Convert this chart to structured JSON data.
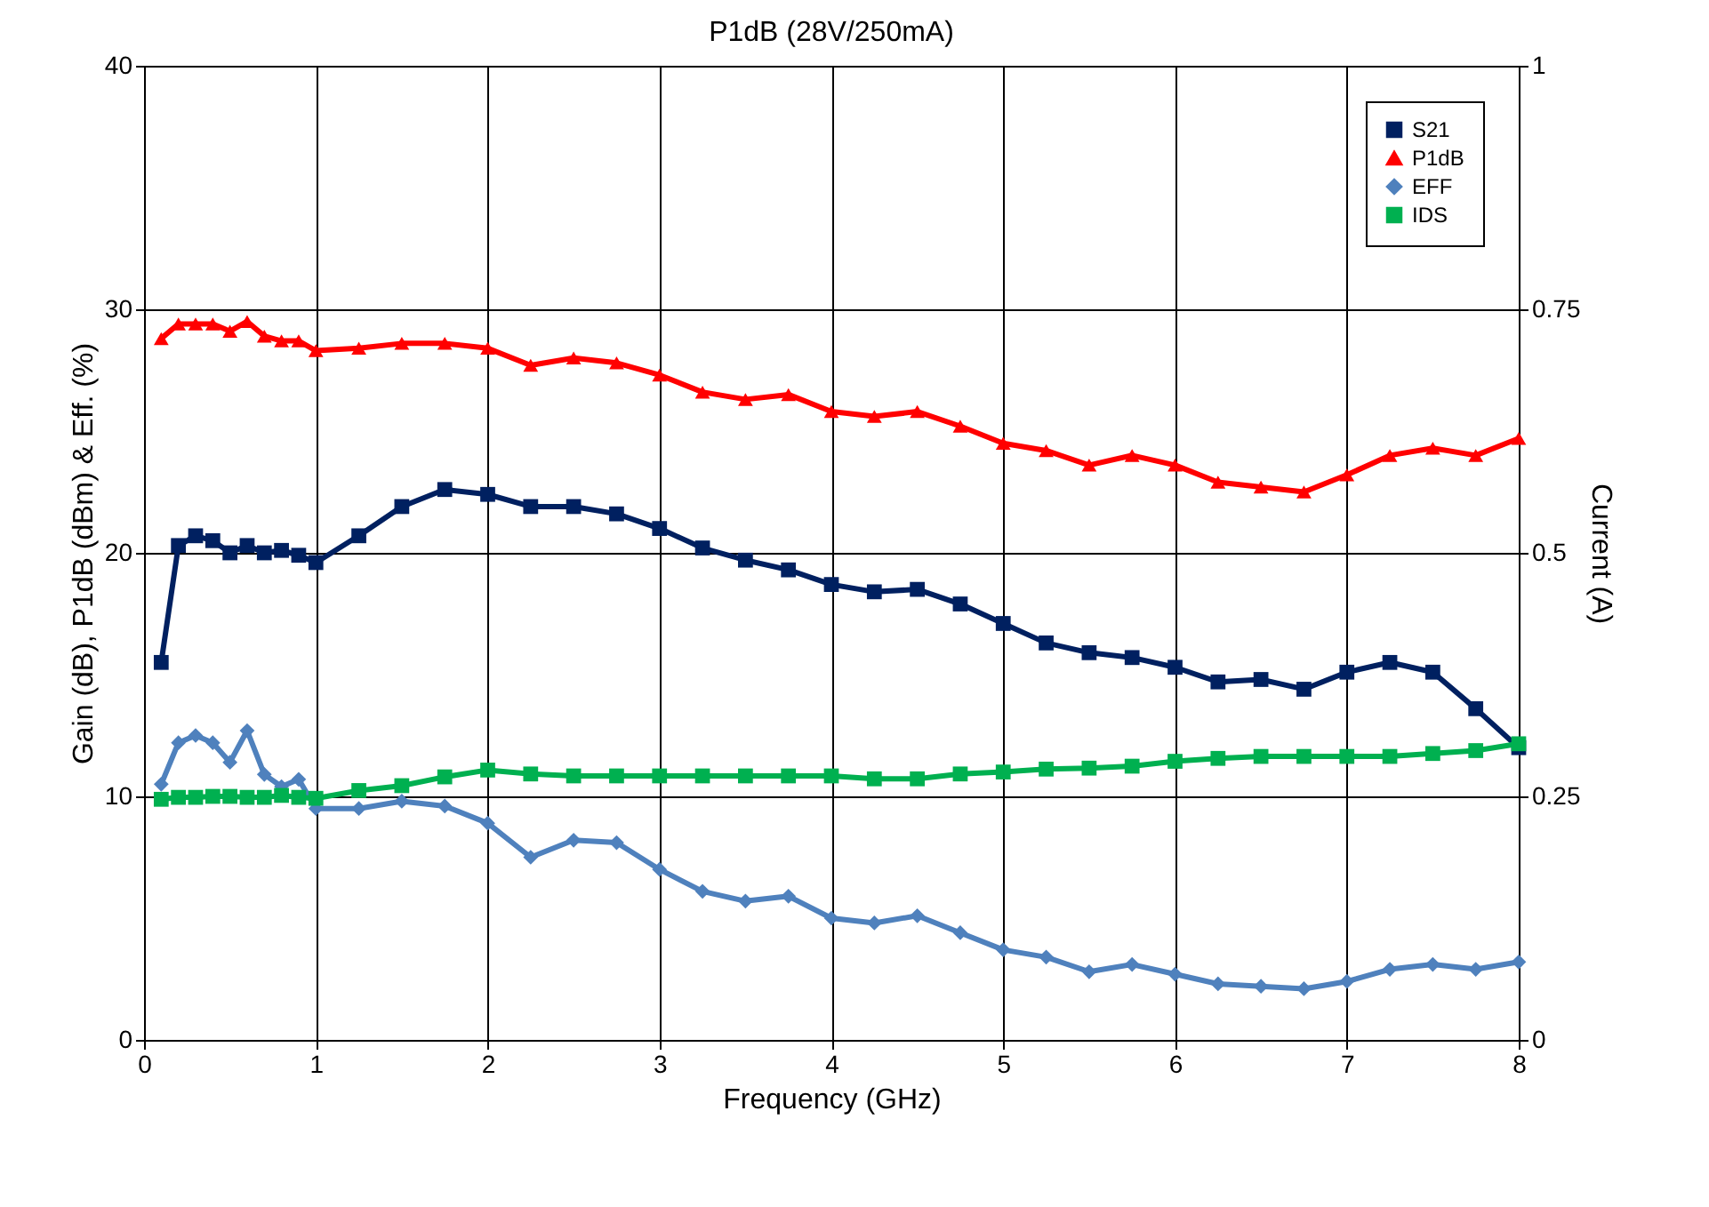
{
  "chart_data": {
    "type": "line",
    "title": "P1dB (28V/250mA)",
    "xlabel": "Frequency (GHz)",
    "ylabel": "Gain (dB), P1dB (dBm) & Eff. (%)",
    "y2label": "Current (A)",
    "x": [
      0.1,
      0.2,
      0.3,
      0.4,
      0.5,
      0.6,
      0.7,
      0.8,
      0.9,
      1.0,
      1.25,
      1.5,
      1.75,
      2,
      2.25,
      2.5,
      2.75,
      3,
      3.25,
      3.5,
      3.75,
      4,
      4.25,
      4.5,
      4.75,
      5,
      5.25,
      5.5,
      5.75,
      6,
      6.25,
      6.5,
      6.75,
      7,
      7.25,
      7.5,
      7.75,
      8
    ],
    "series": [
      {
        "name": "S21",
        "color": "#002060",
        "marker": "square",
        "values": [
          15.5,
          20.3,
          20.7,
          20.5,
          20.0,
          20.3,
          20.0,
          20.1,
          19.9,
          19.6,
          20.7,
          21.9,
          22.6,
          22.4,
          21.9,
          21.9,
          21.6,
          21.0,
          20.2,
          19.7,
          19.3,
          18.7,
          18.4,
          18.5,
          17.9,
          17.1,
          16.3,
          15.9,
          15.7,
          15.3,
          14.7,
          14.8,
          14.4,
          15.1,
          15.5,
          15.1,
          13.6,
          12.0
        ]
      },
      {
        "name": "P1dB",
        "color": "#ff0000",
        "marker": "triangle",
        "values": [
          28.8,
          29.4,
          29.4,
          29.4,
          29.1,
          29.5,
          28.9,
          28.7,
          28.7,
          28.3,
          28.4,
          28.6,
          28.6,
          28.4,
          27.7,
          28.0,
          27.8,
          27.3,
          26.6,
          26.3,
          26.5,
          25.8,
          25.6,
          25.8,
          25.2,
          24.5,
          24.2,
          23.6,
          24.0,
          23.6,
          22.9,
          22.7,
          22.5,
          23.2,
          24.0,
          24.3,
          24.0,
          24.7
        ]
      },
      {
        "name": "EFF",
        "color": "#4f81bd",
        "marker": "diamond",
        "values": [
          10.5,
          12.2,
          12.5,
          12.2,
          11.4,
          12.7,
          10.9,
          10.4,
          10.7,
          9.5,
          9.5,
          9.8,
          9.6,
          8.9,
          7.5,
          8.2,
          8.1,
          7.0,
          6.1,
          5.7,
          5.9,
          5.0,
          4.8,
          5.1,
          4.4,
          3.7,
          3.4,
          2.8,
          3.1,
          2.7,
          2.3,
          2.2,
          2.1,
          2.4,
          2.9,
          3.1,
          2.9,
          3.2
        ]
      },
      {
        "name": "IDS",
        "color": "#00b050",
        "marker": "square",
        "axis": "y2",
        "values": [
          0.247,
          0.249,
          0.249,
          0.25,
          0.25,
          0.249,
          0.249,
          0.251,
          0.249,
          0.248,
          0.256,
          0.261,
          0.27,
          0.277,
          0.273,
          0.271,
          0.271,
          0.271,
          0.271,
          0.271,
          0.271,
          0.271,
          0.268,
          0.268,
          0.273,
          0.275,
          0.278,
          0.279,
          0.281,
          0.286,
          0.289,
          0.291,
          0.291,
          0.291,
          0.291,
          0.294,
          0.297,
          0.304
        ]
      }
    ],
    "xlim": [
      0,
      8
    ],
    "xticks": [
      0,
      1,
      2,
      3,
      4,
      5,
      6,
      7,
      8
    ],
    "ylim": [
      0,
      40
    ],
    "yticks": [
      0,
      10,
      20,
      30,
      40
    ],
    "y2lim": [
      0,
      1
    ],
    "y2ticks": [
      0,
      0.25,
      0.5,
      0.75,
      1
    ],
    "grid": true,
    "legend": "top right",
    "line_style": "solid"
  }
}
